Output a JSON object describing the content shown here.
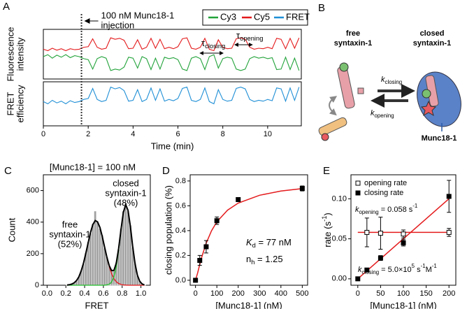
{
  "chart_data": [
    {
      "type": "line",
      "panel": "A",
      "ylabel": [
        "Fluorescence",
        "intensity"
      ],
      "xlim": [
        0,
        11.5
      ],
      "ylim": [
        0,
        1
      ],
      "injection_time": 1.7,
      "injection_label": [
        "100 nM Munc18-1",
        "injection"
      ],
      "tau_closing": [
        {
          "text": "τ"
        },
        {
          "text": "closing",
          "shift": "sub"
        }
      ],
      "tau_opening": [
        {
          "text": "τ"
        },
        {
          "text": "opening",
          "shift": "sub"
        }
      ],
      "x": [
        0,
        0.2,
        0.4,
        0.6,
        0.8,
        1,
        1.2,
        1.4,
        1.6,
        1.8,
        2,
        2.2,
        2.4,
        2.6,
        2.8,
        3,
        3.2,
        3.4,
        3.6,
        3.8,
        4,
        4.2,
        4.4,
        4.6,
        4.8,
        5,
        5.2,
        5.4,
        5.6,
        5.8,
        6,
        6.2,
        6.4,
        6.6,
        6.8,
        7,
        7.2,
        7.4,
        7.6,
        7.8,
        8,
        8.2,
        8.4,
        8.6,
        8.8,
        9,
        9.2,
        9.4,
        9.6,
        9.8,
        10,
        10.2,
        10.4,
        10.6,
        10.8,
        11,
        11.2,
        11.4
      ],
      "series": [
        {
          "name": "Cy3",
          "color": "#22a33a",
          "values": [
            0.45,
            0.49,
            0.42,
            0.48,
            0.44,
            0.49,
            0.43,
            0.47,
            0.45,
            0.41,
            0.39,
            0.2,
            0.41,
            0.45,
            0.42,
            0.17,
            0.2,
            0.18,
            0.24,
            0.44,
            0.42,
            0.22,
            0.45,
            0.41,
            0.19,
            0.42,
            0.2,
            0.44,
            0.41,
            0.43,
            0.39,
            0.2,
            0.17,
            0.42,
            0.45,
            0.41,
            0.19,
            0.45,
            0.49,
            0.22,
            0.41,
            0.44,
            0.42,
            0.2,
            0.17,
            0.2,
            0.41,
            0.45,
            0.42,
            0.44,
            0.41,
            0.43,
            0.19,
            0.2,
            0.44,
            0.19,
            0.42,
            0.17
          ]
        },
        {
          "name": "Cy5",
          "color": "#e41a1c",
          "values": [
            0.6,
            0.57,
            0.62,
            0.58,
            0.61,
            0.57,
            0.61,
            0.59,
            0.6,
            0.64,
            0.65,
            0.81,
            0.64,
            0.6,
            0.62,
            0.83,
            0.8,
            0.82,
            0.78,
            0.61,
            0.62,
            0.79,
            0.6,
            0.64,
            0.82,
            0.62,
            0.8,
            0.61,
            0.64,
            0.61,
            0.65,
            0.81,
            0.83,
            0.62,
            0.6,
            0.64,
            0.82,
            0.6,
            0.57,
            0.79,
            0.64,
            0.61,
            0.62,
            0.81,
            0.83,
            0.8,
            0.64,
            0.6,
            0.62,
            0.61,
            0.64,
            0.61,
            0.82,
            0.8,
            0.61,
            0.82,
            0.62,
            0.83
          ]
        }
      ]
    },
    {
      "type": "line",
      "ylabel": [
        "FRET",
        "efficiency"
      ],
      "xlabel": "Time (min)",
      "xlim": [
        0,
        11.5
      ],
      "ylim": [
        0,
        1
      ],
      "xticks": [
        0,
        2,
        4,
        6,
        8,
        10
      ],
      "x": [
        0,
        0.2,
        0.4,
        0.6,
        0.8,
        1,
        1.2,
        1.4,
        1.6,
        1.8,
        2,
        2.2,
        2.4,
        2.6,
        2.8,
        3,
        3.2,
        3.4,
        3.6,
        3.8,
        4,
        4.2,
        4.4,
        4.6,
        4.8,
        5,
        5.2,
        5.4,
        5.6,
        5.8,
        6,
        6.2,
        6.4,
        6.6,
        6.8,
        7,
        7.2,
        7.4,
        7.6,
        7.8,
        8,
        8.2,
        8.4,
        8.6,
        8.8,
        9,
        9.2,
        9.4,
        9.6,
        9.8,
        10,
        10.2,
        10.4,
        10.6,
        10.8,
        11,
        11.2,
        11.4
      ],
      "series": [
        {
          "name": "FRET",
          "color": "#1f8fd6",
          "values": [
            0.55,
            0.5,
            0.58,
            0.52,
            0.56,
            0.5,
            0.57,
            0.53,
            0.55,
            0.6,
            0.62,
            0.85,
            0.6,
            0.55,
            0.58,
            0.88,
            0.84,
            0.87,
            0.8,
            0.56,
            0.58,
            0.82,
            0.55,
            0.6,
            0.86,
            0.58,
            0.84,
            0.56,
            0.6,
            0.57,
            0.62,
            0.85,
            0.88,
            0.58,
            0.55,
            0.6,
            0.86,
            0.55,
            0.5,
            0.82,
            0.6,
            0.56,
            0.58,
            0.85,
            0.88,
            0.84,
            0.6,
            0.55,
            0.58,
            0.56,
            0.6,
            0.57,
            0.86,
            0.84,
            0.56,
            0.86,
            0.58,
            0.88
          ]
        }
      ]
    },
    {
      "type": "histogram",
      "panel": "C",
      "title": "[Munc18-1] = 100 nM",
      "xlabel": "FRET",
      "ylabel": "Count",
      "color": "#a0a0a0",
      "xlim": [
        -0.04,
        1.1
      ],
      "ylim": [
        0,
        700
      ],
      "xticks": [
        {
          "value": 0,
          "label": "0.0"
        },
        {
          "value": 0.2,
          "label": "0.2"
        },
        {
          "value": 0.4,
          "label": "0.4"
        },
        {
          "value": 0.6,
          "label": "0.6"
        },
        {
          "value": 0.8,
          "label": "0.8"
        },
        {
          "value": 1,
          "label": "1.0"
        }
      ],
      "yticks": [
        0,
        200,
        400,
        600
      ],
      "free_label": [
        "free",
        "syntaxin-1",
        "(52%)"
      ],
      "closed_label": [
        "closed",
        "syntaxin-1",
        "(48%)"
      ],
      "bins": [
        0.2,
        0.225,
        0.25,
        0.275,
        0.3,
        0.325,
        0.35,
        0.375,
        0.4,
        0.425,
        0.45,
        0.475,
        0.5,
        0.525,
        0.55,
        0.575,
        0.6,
        0.625,
        0.65,
        0.675,
        0.7,
        0.725,
        0.75,
        0.775,
        0.8,
        0.825,
        0.85,
        0.875,
        0.9,
        0.925,
        0.95,
        0.975,
        1,
        1.025,
        1.05
      ],
      "values": [
        2,
        5,
        6,
        18,
        27,
        55,
        92,
        135,
        205,
        275,
        330,
        390,
        470,
        400,
        360,
        318,
        235,
        180,
        120,
        98,
        90,
        145,
        228,
        360,
        470,
        520,
        470,
        380,
        240,
        140,
        60,
        28,
        10,
        3
      ],
      "fit_x": [
        0.2125,
        0.2375,
        0.2625,
        0.2875,
        0.3125,
        0.3375,
        0.3625,
        0.3875,
        0.4125,
        0.4375,
        0.4625,
        0.4875,
        0.5125,
        0.5375,
        0.5625,
        0.5875,
        0.6125,
        0.6375,
        0.6625,
        0.6875,
        0.7125,
        0.7375,
        0.7625,
        0.7875,
        0.8125,
        0.8375,
        0.8625,
        0.8875,
        0.9125,
        0.9375,
        0.9625,
        0.9875,
        1.0125,
        1.0375
      ],
      "fits": [
        {
          "color": "#e41a1c",
          "values": [
            1,
            3,
            7,
            15,
            29,
            52,
            89,
            139,
            201,
            269,
            334,
            384,
            410,
            402,
            367,
            310,
            242,
            175,
            117,
            73,
            41,
            22,
            11,
            5,
            2,
            1,
            0,
            0,
            0,
            0,
            0,
            0,
            0,
            0
          ]
        },
        {
          "color": "#22c02a",
          "values": [
            0,
            0,
            0,
            0,
            0,
            0,
            0,
            0,
            0,
            0,
            0,
            0,
            0,
            0,
            0,
            0,
            0,
            2,
            6,
            20,
            53,
            118,
            222,
            348,
            459,
            510,
            475,
            373,
            246,
            136,
            64,
            25,
            8,
            2
          ]
        },
        {
          "color": "#000000",
          "values": [
            1,
            3,
            7,
            15,
            29,
            52,
            89,
            139,
            201,
            269,
            334,
            384,
            410,
            402,
            367,
            310,
            242,
            177,
            123,
            93,
            94,
            140,
            233,
            353,
            461,
            511,
            475,
            373,
            246,
            136,
            64,
            25,
            8,
            2
          ]
        }
      ]
    },
    {
      "type": "scatter",
      "panel": "D",
      "xlabel": "[Munc18-1] (nM)",
      "ylabel": "closing population (%)",
      "xlim": [
        -25,
        525
      ],
      "ylim": [
        -0.04,
        0.85
      ],
      "xticks": [
        0,
        100,
        200,
        300,
        400,
        500
      ],
      "yticks": [
        {
          "value": 0,
          "label": "0.0"
        },
        {
          "value": 0.2,
          "label": "0.2"
        },
        {
          "value": 0.4,
          "label": "0.4"
        },
        {
          "value": 0.6,
          "label": "0.6"
        },
        {
          "value": 0.8,
          "label": "0.8"
        }
      ],
      "series": [
        {
          "color": "#000000",
          "marker": "filled",
          "x": [
            0,
            20,
            50,
            100,
            200,
            500
          ],
          "values": [
            0,
            0.16,
            0.27,
            0.48,
            0.65,
            0.74
          ],
          "errors": [
            0,
            0.04,
            0.05,
            0.03,
            0.01,
            0.02
          ]
        }
      ],
      "fits": [
        {
          "color": "#e41a1c",
          "x": [
            0,
            10,
            20,
            30,
            50,
            75,
            100,
            150,
            200,
            300,
            400,
            500
          ],
          "values": [
            0,
            0.059,
            0.127,
            0.191,
            0.298,
            0.398,
            0.471,
            0.565,
            0.622,
            0.685,
            0.719,
            0.739
          ]
        }
      ],
      "annotations": [
        [
          {
            "text": "K",
            "italic": true
          },
          {
            "text": "d",
            "shift": "sub"
          },
          {
            "text": " = 77 nM"
          }
        ],
        [
          {
            "text": "n"
          },
          {
            "text": "h",
            "shift": "sub"
          },
          {
            "text": " = 1.25"
          }
        ]
      ]
    },
    {
      "type": "scatter",
      "panel": "E",
      "xlabel": "[Munc18-1] (nM)",
      "ylabel": [
        {
          "text": "rate (s"
        },
        {
          "text": "-1",
          "shift": "sup"
        },
        {
          "text": ")"
        }
      ],
      "xlim": [
        -15,
        215
      ],
      "ylim": [
        -0.008,
        0.13
      ],
      "xticks": [
        0,
        50,
        100,
        150,
        200
      ],
      "yticks": [
        {
          "value": 0,
          "label": "0.00"
        },
        {
          "value": 0.05,
          "label": "0.05"
        },
        {
          "value": 0.1,
          "label": "0.10"
        }
      ],
      "series": [
        {
          "name": "opening rate",
          "color": "#000000",
          "marker": "open",
          "x": [
            20,
            50,
            100,
            200
          ],
          "values": [
            0.058,
            0.057,
            0.056,
            0.058
          ],
          "errors": [
            0.018,
            0.02,
            0.005,
            0.005
          ]
        },
        {
          "name": "closing rate",
          "color": "#000000",
          "marker": "filled",
          "x": [
            0,
            20,
            50,
            100,
            200
          ],
          "values": [
            0,
            0.011,
            0.026,
            0.045,
            0.103
          ],
          "errors": [
            0.001,
            0.002,
            0.003,
            0.004,
            0.02
          ]
        }
      ],
      "fits": [
        {
          "color": "#e41a1c",
          "x": [
            0,
            200
          ],
          "values": [
            0.058,
            0.058
          ]
        },
        {
          "color": "#e41a1c",
          "x": [
            0,
            200
          ],
          "values": [
            0,
            0.1
          ]
        }
      ],
      "annotations": [
        [
          {
            "text": "k",
            "italic": true
          },
          {
            "text": "opening",
            "shift": "sub"
          },
          {
            "text": " = 0.058 s"
          },
          {
            "text": "-1",
            "shift": "sup"
          }
        ],
        [
          {
            "text": "k",
            "italic": true
          },
          {
            "text": "closing",
            "shift": "sub"
          },
          {
            "text": " = 5.0×10"
          },
          {
            "text": "5",
            "shift": "sup"
          },
          {
            "text": " s"
          },
          {
            "text": "-1",
            "shift": "sup"
          },
          {
            "text": "M"
          },
          {
            "text": "-1",
            "shift": "sup"
          }
        ]
      ]
    }
  ],
  "diagram": {
    "panel": "B",
    "free": [
      "free",
      "syntaxin-1"
    ],
    "closed": [
      "closed",
      "syntaxin-1"
    ],
    "k_closing": [
      {
        "text": "k",
        "italic": true
      },
      {
        "text": "closing",
        "shift": "sub"
      }
    ],
    "k_opening": [
      {
        "text": "k",
        "italic": true
      },
      {
        "text": "opening",
        "shift": "sub"
      }
    ],
    "munc": "Munc18-1"
  }
}
